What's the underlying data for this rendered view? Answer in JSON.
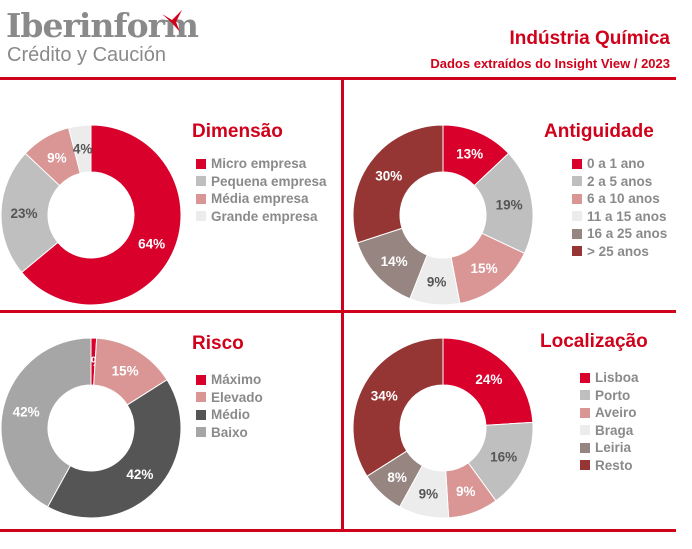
{
  "header": {
    "logo_main": "Iberinform",
    "logo_sub": "Crédito y Caución",
    "title": "Indústria Química",
    "subtitle": "Dados extraídos do Insight View / 2023"
  },
  "chart_data": [
    {
      "type": "pie",
      "title": "Dimensão",
      "categories": [
        "Micro empresa",
        "Pequena empresa",
        "Média empresa",
        "Grande empresa"
      ],
      "values": [
        64,
        23,
        9,
        4
      ],
      "labels": [
        "64%",
        "23%",
        "9%",
        "4%"
      ],
      "colors": [
        "#d9002b",
        "#bfbfbf",
        "#d99694",
        "#ececec"
      ]
    },
    {
      "type": "pie",
      "title": "Antiguidade",
      "categories": [
        "0 a 1 ano",
        "2 a 5 anos",
        "6 a 10 anos",
        "11 a 15 anos",
        "16 a 25 anos",
        "> 25 anos"
      ],
      "values": [
        13,
        19,
        15,
        9,
        14,
        30
      ],
      "labels": [
        "13%",
        "19%",
        "15%",
        "9%",
        "14%",
        "30%"
      ],
      "colors": [
        "#d9002b",
        "#bfbfbf",
        "#d99694",
        "#ececec",
        "#968580",
        "#963634"
      ]
    },
    {
      "type": "pie",
      "title": "Risco",
      "categories": [
        "Máximo",
        "Elevado",
        "Médio",
        "Baixo"
      ],
      "values": [
        1,
        15,
        42,
        42
      ],
      "labels": [
        "1%",
        "15%",
        "42%",
        "42%"
      ],
      "colors": [
        "#d9002b",
        "#d99694",
        "#555555",
        "#a6a6a6"
      ]
    },
    {
      "type": "pie",
      "title": "Localização",
      "categories": [
        "Lisboa",
        "Porto",
        "Aveiro",
        "Braga",
        "Leiria",
        "Resto"
      ],
      "values": [
        24,
        16,
        9,
        9,
        8,
        34
      ],
      "labels": [
        "24%",
        "16%",
        "9%",
        "9%",
        "8%",
        "34%"
      ],
      "colors": [
        "#d9002b",
        "#bfbfbf",
        "#d99694",
        "#ececec",
        "#968580",
        "#963634"
      ]
    }
  ]
}
